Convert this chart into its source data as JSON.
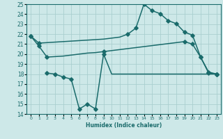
{
  "bg_color": "#cde8e8",
  "grid_color": "#aacfcf",
  "line_color": "#1a6b6b",
  "xlabel": "Humidex (Indice chaleur)",
  "xlim": [
    -0.5,
    23.5
  ],
  "ylim": [
    14,
    25
  ],
  "xticks": [
    0,
    1,
    2,
    3,
    4,
    5,
    6,
    7,
    8,
    9,
    10,
    11,
    12,
    13,
    14,
    15,
    16,
    17,
    18,
    19,
    20,
    21,
    22,
    23
  ],
  "yticks": [
    14,
    15,
    16,
    17,
    18,
    19,
    20,
    21,
    22,
    23,
    24,
    25
  ],
  "line1_x": [
    0,
    1,
    2,
    3,
    4,
    5,
    6,
    7,
    8,
    9,
    10,
    11,
    12,
    13,
    14,
    15,
    16,
    17,
    18,
    19,
    20,
    21,
    22,
    23
  ],
  "line1_y": [
    21.8,
    21.1,
    21.15,
    21.2,
    21.25,
    21.3,
    21.35,
    21.4,
    21.45,
    21.5,
    21.6,
    21.7,
    22.0,
    22.6,
    25.0,
    24.35,
    24.05,
    23.35,
    23.05,
    22.2,
    21.9,
    19.7,
    18.1,
    18.0
  ],
  "line1_markers_x": [
    0,
    1,
    12,
    13,
    14,
    15,
    16,
    17,
    18,
    19,
    20,
    21,
    22,
    23
  ],
  "line1_markers_y": [
    21.8,
    21.1,
    22.0,
    22.6,
    25.0,
    24.35,
    24.05,
    23.35,
    23.05,
    22.2,
    21.9,
    19.7,
    18.1,
    18.0
  ],
  "line2_x": [
    0,
    1,
    2,
    3,
    4,
    5,
    6,
    7,
    8,
    9,
    10,
    11,
    12,
    13,
    14,
    15,
    16,
    17,
    18,
    19,
    20,
    21,
    22,
    23
  ],
  "line2_y": [
    21.8,
    20.8,
    19.7,
    19.75,
    19.8,
    19.9,
    20.0,
    20.1,
    20.15,
    20.25,
    20.35,
    20.45,
    20.55,
    20.65,
    20.75,
    20.85,
    20.95,
    21.05,
    21.15,
    21.25,
    21.0,
    19.7,
    18.2,
    18.0
  ],
  "line2_markers_x": [
    0,
    1,
    2,
    9,
    19,
    20,
    21,
    22,
    23
  ],
  "line2_markers_y": [
    21.8,
    20.8,
    19.7,
    20.25,
    21.25,
    21.0,
    19.7,
    18.2,
    18.0
  ],
  "line3_x": [
    2,
    3,
    4,
    5,
    6,
    7,
    8,
    9,
    10,
    11,
    12,
    13,
    14,
    15,
    16,
    17,
    18,
    19,
    20,
    21,
    22,
    23
  ],
  "line3_y": [
    18.1,
    18.0,
    17.7,
    17.5,
    14.5,
    15.0,
    14.5,
    20.0,
    18.0,
    18.0,
    18.0,
    18.0,
    18.0,
    18.0,
    18.0,
    18.0,
    18.0,
    18.0,
    18.0,
    18.0,
    18.0,
    18.0
  ],
  "line3_markers_x": [
    2,
    3,
    4,
    5,
    6,
    7,
    8,
    9,
    23
  ],
  "line3_markers_y": [
    18.1,
    18.0,
    17.7,
    17.5,
    14.5,
    15.0,
    14.5,
    20.0,
    18.0
  ],
  "markersize": 2.8,
  "linewidth": 1.1
}
